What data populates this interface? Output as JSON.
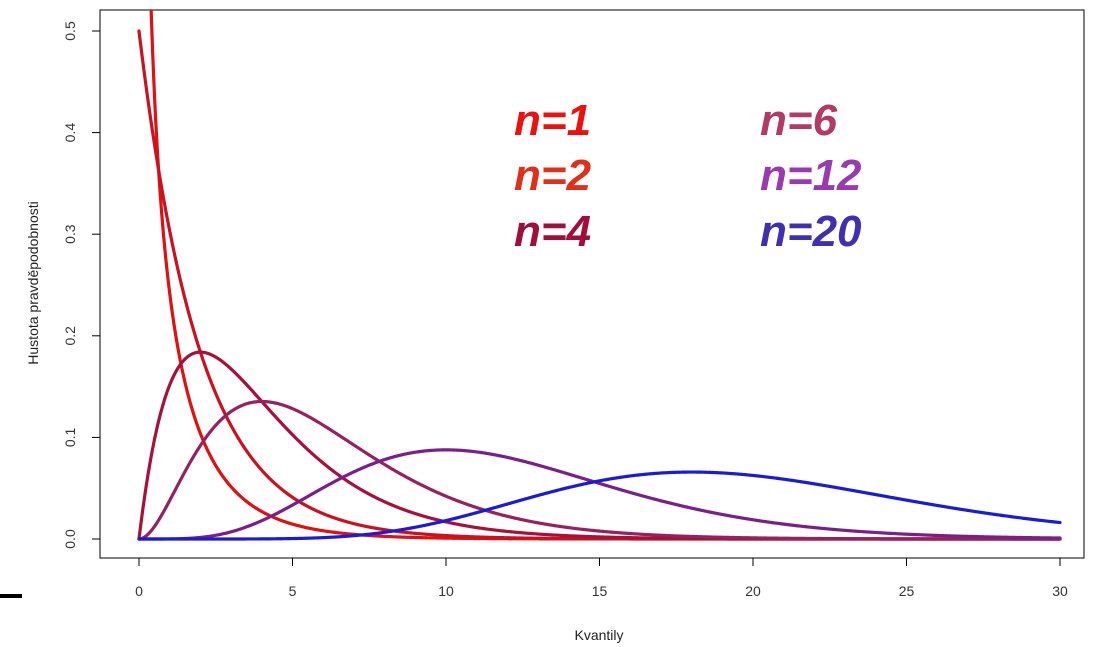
{
  "chart_data": {
    "type": "line",
    "xlabel": "Kvantily",
    "ylabel": "Hustota pravděpodobnosti",
    "xlim": [
      0,
      30
    ],
    "ylim": [
      0,
      0.5
    ],
    "x_ticks": [
      0,
      5,
      10,
      15,
      20,
      25,
      30
    ],
    "x_tick_labels": [
      "0",
      "5",
      "10",
      "15",
      "20",
      "25",
      "30"
    ],
    "y_ticks": [
      0.0,
      0.1,
      0.2,
      0.3,
      0.4,
      0.5
    ],
    "y_tick_labels": [
      "0.0",
      "0.1",
      "0.2",
      "0.3",
      "0.4",
      "0.5"
    ],
    "grid": false,
    "legend_position": "top-right",
    "series": [
      {
        "name": "n=1",
        "df": 1,
        "color": "#e01010"
      },
      {
        "name": "n=2",
        "df": 2,
        "color": "#cc1020"
      },
      {
        "name": "n=4",
        "df": 4,
        "color": "#a8103a"
      },
      {
        "name": "n=6",
        "df": 6,
        "color": "#962060"
      },
      {
        "name": "n=12",
        "df": 12,
        "color": "#7a1e8a"
      },
      {
        "name": "n=20",
        "df": 20,
        "color": "#1a1ad8"
      }
    ],
    "legend": [
      {
        "label": "n=1",
        "color": "#ee0f0f"
      },
      {
        "label": "n=2",
        "color": "#e0301a"
      },
      {
        "label": "n=4",
        "color": "#a00e3c"
      },
      {
        "label": "n=6",
        "color": "#b23a64"
      },
      {
        "label": "n=12",
        "color": "#9a3ab0"
      },
      {
        "label": "n=20",
        "color": "#4030b0"
      }
    ]
  }
}
